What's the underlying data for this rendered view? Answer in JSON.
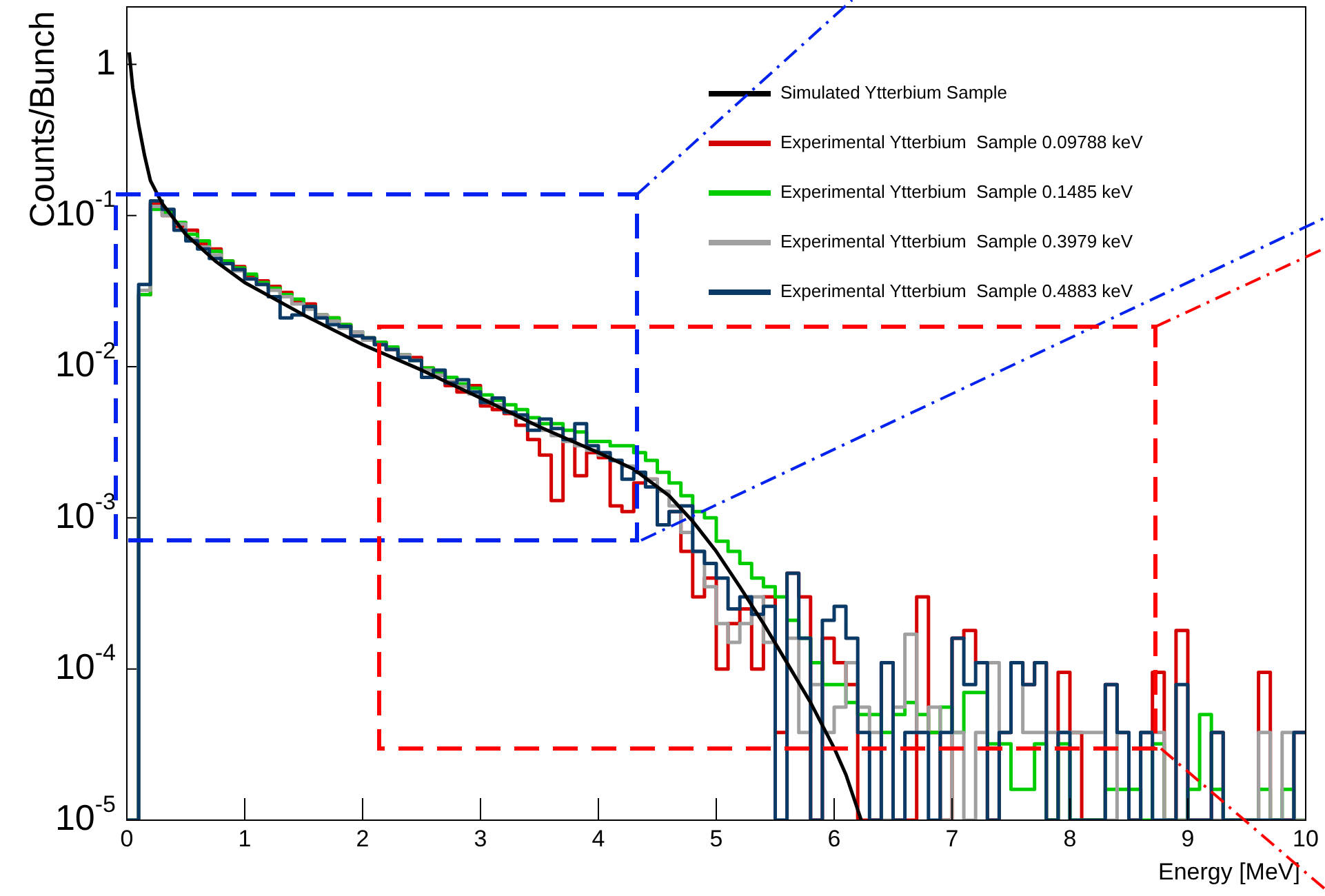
{
  "chart_data": {
    "type": "histogram",
    "xlabel": "Energy [MeV]",
    "ylabel": "Counts/Bunch",
    "bins": [
      0,
      0.1,
      0.2,
      0.3,
      0.4,
      0.5,
      0.6,
      0.7,
      0.8,
      0.9,
      1,
      1.1,
      1.2,
      1.3,
      1.4,
      1.5,
      1.6,
      1.7,
      1.8,
      1.9,
      2,
      2.1,
      2.2,
      2.3,
      2.4,
      2.5,
      2.6,
      2.7,
      2.8,
      2.9,
      3,
      3.1,
      3.2,
      3.3,
      3.4,
      3.5,
      3.6,
      3.7,
      3.8,
      3.9,
      4,
      4.1,
      4.2,
      4.3,
      4.4,
      4.5,
      4.6,
      4.7,
      4.8,
      4.9,
      5,
      5.1,
      5.2,
      5.3,
      5.4,
      5.5,
      5.6,
      5.7,
      5.8,
      5.9,
      6,
      6.1,
      6.2,
      6.3,
      6.4,
      6.5,
      6.6,
      6.7,
      6.8,
      6.9,
      7,
      7.1,
      7.2,
      7.3,
      7.4,
      7.5,
      7.6,
      7.7,
      7.8,
      7.9,
      8,
      8.1,
      8.2,
      8.3,
      8.4,
      8.5,
      8.6,
      8.7,
      8.8,
      8.9,
      9,
      9.1,
      9.2,
      9.3,
      9.4,
      9.5,
      9.6,
      9.7,
      9.8,
      9.9,
      10
    ],
    "series": [
      {
        "name": "Simulated Ytterbium Sample",
        "color": "#000000",
        "type": "line",
        "x": [
          0.02,
          0.05,
          0.1,
          0.15,
          0.2,
          0.3,
          0.5,
          0.75,
          1,
          1.5,
          2,
          2.5,
          3,
          3.5,
          4,
          4.3,
          4.6,
          4.8,
          5,
          5.2,
          5.4,
          5.6,
          5.8,
          6,
          6.1,
          6.23
        ],
        "values": [
          1.2,
          0.7,
          0.4,
          0.25,
          0.17,
          0.12,
          0.075,
          0.05,
          0.036,
          0.022,
          0.014,
          0.0095,
          0.0062,
          0.004,
          0.0027,
          0.0021,
          0.0014,
          0.00095,
          0.0006,
          0.00035,
          0.0002,
          0.00011,
          6e-05,
          3e-05,
          2e-05,
          1e-05
        ]
      },
      {
        "name": "Experimental Ytterbium  Sample 0.09788 keV",
        "color": "#d40000",
        "values": [
          1e-05,
          0.03,
          0.12,
          0.1,
          0.085,
          0.08,
          0.065,
          0.06,
          0.05,
          0.046,
          0.04,
          0.037,
          0.034,
          0.031,
          0.027,
          0.026,
          0.022,
          0.021,
          0.019,
          0.016,
          0.0155,
          0.0145,
          0.013,
          0.012,
          0.0115,
          0.0098,
          0.0088,
          0.0075,
          0.0068,
          0.0075,
          0.0055,
          0.0052,
          0.0049,
          0.0041,
          0.0033,
          0.0026,
          0.0013,
          0.0033,
          0.0019,
          0.0027,
          0.0025,
          0.0012,
          0.0011,
          0.0017,
          0.0018,
          0.0009,
          0.0011,
          0.0006,
          0.0003,
          0.0004,
          0.0001,
          0.0002,
          0.00025,
          0.0001,
          0.0003,
          3.8e-05,
          0.00043,
          0.0003,
          1e-05,
          0.00016,
          0.00011,
          7.9e-05,
          1e-05,
          1e-05,
          0.00011,
          1e-05,
          1e-05,
          0.0003,
          3.8e-05,
          1e-05,
          0.00016,
          0.00018,
          0.00011,
          1e-05,
          3.8e-05,
          0.00011,
          7.9e-05,
          0.00011,
          1e-05,
          9.5e-05,
          3.8e-05,
          1e-05,
          1e-05,
          7.9e-05,
          3.8e-05,
          1e-05,
          3.8e-05,
          9.5e-05,
          1e-05,
          0.00018,
          1e-05,
          1e-05,
          3.8e-05,
          1e-05,
          1e-05,
          1e-05,
          9.5e-05,
          1e-05,
          1e-05,
          3.8e-05
        ]
      },
      {
        "name": "Experimental Ytterbium  Sample 0.1485 keV",
        "color": "#00cc00",
        "values": [
          1e-05,
          0.03,
          0.11,
          0.105,
          0.09,
          0.075,
          0.068,
          0.058,
          0.05,
          0.045,
          0.041,
          0.036,
          0.033,
          0.03,
          0.028,
          0.025,
          0.022,
          0.021,
          0.019,
          0.017,
          0.0155,
          0.0145,
          0.0135,
          0.012,
          0.011,
          0.0098,
          0.0092,
          0.0085,
          0.0077,
          0.0072,
          0.0065,
          0.006,
          0.0056,
          0.0052,
          0.0046,
          0.0042,
          0.0042,
          0.0038,
          0.0037,
          0.0032,
          0.0032,
          0.003,
          0.003,
          0.0027,
          0.0024,
          0.002,
          0.0017,
          0.0014,
          0.0011,
          0.001,
          0.0007,
          0.0006,
          0.0005,
          0.0004,
          0.00035,
          0.0003,
          0.00021,
          0.00016,
          0.00011,
          7.9e-05,
          7.9e-05,
          6e-05,
          5e-05,
          5e-05,
          3.8e-05,
          5e-05,
          6e-05,
          5e-05,
          3.8e-05,
          5.6e-05,
          3.8e-05,
          7e-05,
          7e-05,
          3.2e-05,
          3.2e-05,
          1.6e-05,
          1.6e-05,
          3.2e-05,
          1e-05,
          3.2e-05,
          1e-05,
          1e-05,
          1e-05,
          1.6e-05,
          1.6e-05,
          1.6e-05,
          1e-05,
          3.2e-05,
          1e-05,
          1e-05,
          1.6e-05,
          5e-05,
          1.6e-05,
          1e-05,
          1e-05,
          1e-05,
          1.6e-05,
          1e-05,
          1.6e-05,
          1e-05
        ]
      },
      {
        "name": "Experimental Ytterbium  Sample 0.3979 keV",
        "color": "#a0a0a0",
        "values": [
          1e-05,
          0.032,
          0.115,
          0.1,
          0.088,
          0.07,
          0.062,
          0.055,
          0.048,
          0.043,
          0.038,
          0.035,
          0.032,
          0.029,
          0.026,
          0.024,
          0.022,
          0.02,
          0.018,
          0.017,
          0.015,
          0.014,
          0.013,
          0.012,
          0.011,
          0.0095,
          0.0088,
          0.008,
          0.0074,
          0.0066,
          0.006,
          0.0056,
          0.005,
          0.0046,
          0.0042,
          0.0038,
          0.0035,
          0.0032,
          0.003,
          0.0028,
          0.0026,
          0.0024,
          0.0022,
          0.002,
          0.0018,
          0.0015,
          0.0012,
          0.0008,
          0.0006,
          0.00035,
          0.0002,
          0.00015,
          0.0002,
          0.0003,
          0.00015,
          1e-05,
          0.00016,
          3.8e-05,
          7.9e-05,
          3.8e-05,
          5.6e-05,
          0.00011,
          5.6e-05,
          3.8e-05,
          1e-05,
          5.6e-05,
          0.00017,
          3.8e-05,
          5.6e-05,
          1e-05,
          3.8e-05,
          1e-05,
          3.8e-05,
          0.00011,
          3.8e-05,
          0.00011,
          3.8e-05,
          3.8e-05,
          3.8e-05,
          3.8e-05,
          3.8e-05,
          3.8e-05,
          3.8e-05,
          1e-05,
          3.8e-05,
          1e-05,
          3.8e-05,
          3.8e-05,
          1e-05,
          1e-05,
          1e-05,
          1e-05,
          1e-05,
          1e-05,
          1e-05,
          1e-05,
          3.8e-05,
          1e-05,
          3.8e-05,
          1e-05
        ]
      },
      {
        "name": "Experimental Ytterbium  Sample 0.4883 keV",
        "color": "#0b3a66",
        "values": [
          1e-05,
          0.035,
          0.125,
          0.11,
          0.08,
          0.068,
          0.06,
          0.052,
          0.048,
          0.044,
          0.038,
          0.035,
          0.029,
          0.021,
          0.022,
          0.025,
          0.021,
          0.019,
          0.0185,
          0.016,
          0.0155,
          0.014,
          0.013,
          0.0115,
          0.011,
          0.0085,
          0.0095,
          0.0078,
          0.0082,
          0.0068,
          0.0058,
          0.0062,
          0.005,
          0.0048,
          0.0038,
          0.0045,
          0.0039,
          0.0033,
          0.0042,
          0.003,
          0.0027,
          0.0024,
          0.0018,
          0.002,
          0.0016,
          0.0009,
          0.0011,
          0.0012,
          0.0006,
          0.0005,
          0.0004,
          0.00025,
          0.0003,
          0.00023,
          0.00026,
          1e-05,
          0.00043,
          0.00016,
          1e-05,
          0.00021,
          0.00026,
          0.00016,
          3.8e-05,
          1e-05,
          0.00011,
          1e-05,
          3.8e-05,
          3.8e-05,
          1e-05,
          3.8e-05,
          0.00016,
          7.9e-05,
          0.00011,
          1e-05,
          3.8e-05,
          0.00011,
          7.9e-05,
          0.00011,
          1e-05,
          3.8e-05,
          1e-05,
          1e-05,
          1e-05,
          7.9e-05,
          3.8e-05,
          1e-05,
          3.8e-05,
          1e-05,
          1e-05,
          7.9e-05,
          1e-05,
          1e-05,
          3.8e-05,
          1e-05,
          1e-05,
          1e-05,
          1e-05,
          1e-05,
          1e-05,
          3.8e-05
        ]
      }
    ],
    "xlim": [
      0,
      10
    ],
    "ylim": [
      1e-05,
      2.4
    ],
    "xticks": [
      0,
      1,
      2,
      3,
      4,
      5,
      6,
      7,
      8,
      9,
      10
    ],
    "yticks": [
      {
        "value": 1e-05,
        "label": "10$^{-5}$"
      },
      {
        "value": 0.0001,
        "label": "10$^{-4}$"
      },
      {
        "value": 0.001,
        "label": "10$^{-3}$"
      },
      {
        "value": 0.01,
        "label": "10$^{-2}$"
      },
      {
        "value": 0.1,
        "label": "10$^{-1}$"
      },
      1
    ],
    "log": "y",
    "grid": false,
    "legend": "top right"
  }
}
